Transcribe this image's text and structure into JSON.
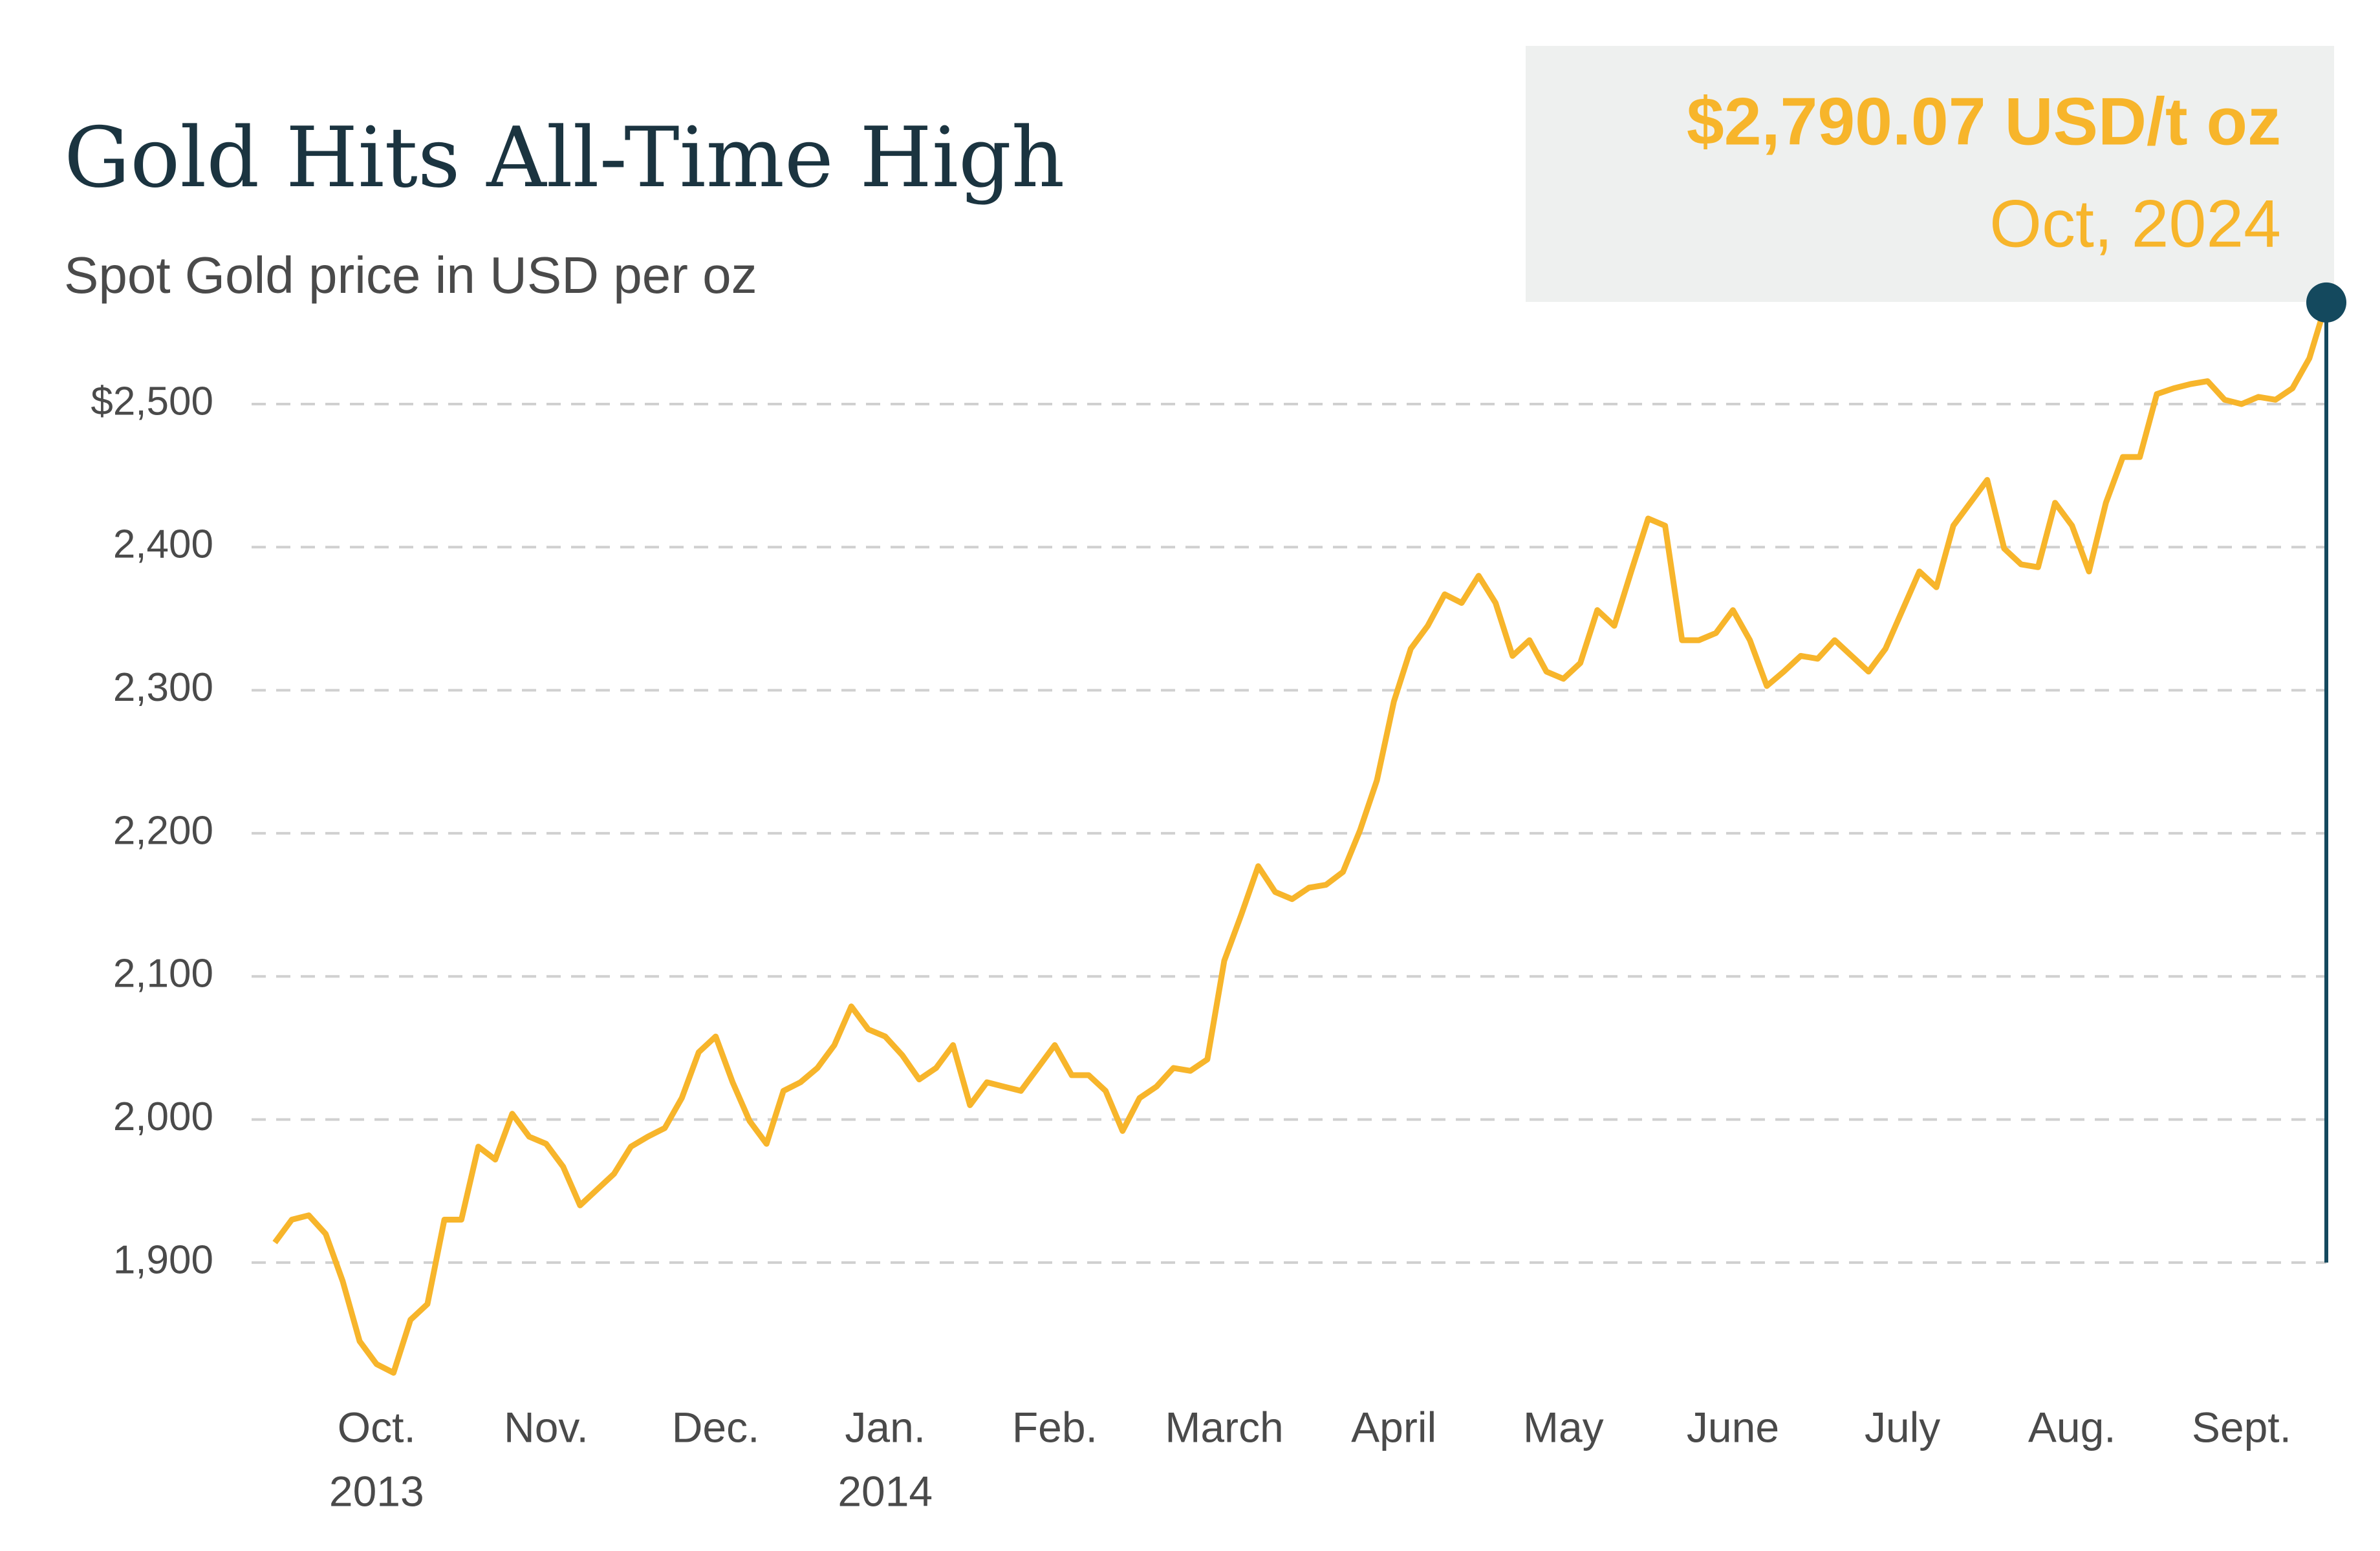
{
  "chart_data": {
    "type": "line",
    "title": "Gold Hits All-Time High",
    "subtitle": "Spot Gold price in USD per oz",
    "headline": "$2,790.07 USD/t oz",
    "headline_date": "Oct, 2024",
    "color": "#f7b52b",
    "marker_color": "#14495e",
    "grid": true,
    "ylim": [
      1815,
      2575
    ],
    "yticks": [
      {
        "value": 1900,
        "label": "1,900"
      },
      {
        "value": 2000,
        "label": "2,000"
      },
      {
        "value": 2100,
        "label": "2,100"
      },
      {
        "value": 2200,
        "label": "2,200"
      },
      {
        "value": 2300,
        "label": "2,300"
      },
      {
        "value": 2400,
        "label": "2,400"
      },
      {
        "value": 2500,
        "label": "$2,500"
      }
    ],
    "categories": [
      null,
      null,
      null,
      null,
      null,
      null,
      "Oct.",
      null,
      null,
      null,
      null,
      null,
      null,
      null,
      null,
      null,
      "Nov.",
      null,
      null,
      null,
      null,
      null,
      null,
      null,
      null,
      null,
      "Dec.",
      null,
      null,
      null,
      null,
      null,
      null,
      null,
      null,
      null,
      "Jan.",
      null,
      null,
      null,
      null,
      null,
      null,
      null,
      null,
      null,
      "Feb.",
      null,
      null,
      null,
      null,
      null,
      null,
      null,
      null,
      null,
      "March",
      null,
      null,
      null,
      null,
      null,
      null,
      null,
      null,
      null,
      "April",
      null,
      null,
      null,
      null,
      null,
      null,
      null,
      null,
      null,
      "May",
      null,
      null,
      null,
      null,
      null,
      null,
      null,
      null,
      null,
      "June",
      null,
      null,
      null,
      null,
      null,
      null,
      null,
      null,
      null,
      "July",
      null,
      null,
      null,
      null,
      null,
      null,
      null,
      null,
      null,
      "Aug.",
      null,
      null,
      null,
      null,
      null,
      null,
      null,
      null,
      null,
      "Sept.",
      null,
      null,
      null,
      null,
      null
    ],
    "years": [
      null,
      null,
      null,
      null,
      null,
      null,
      "2013",
      null,
      null,
      null,
      null,
      null,
      null,
      null,
      null,
      null,
      null,
      null,
      null,
      null,
      null,
      null,
      null,
      null,
      null,
      null,
      null,
      null,
      null,
      null,
      null,
      null,
      null,
      null,
      null,
      null,
      "2014",
      null,
      null,
      null,
      null,
      null,
      null,
      null,
      null,
      null,
      null,
      null,
      null,
      null,
      null,
      null,
      null,
      null,
      null,
      null,
      null,
      null,
      null,
      null,
      null,
      null,
      null,
      null,
      null,
      null,
      null,
      null,
      null,
      null,
      null,
      null,
      null,
      null,
      null,
      null,
      null,
      null,
      null,
      null,
      null,
      null,
      null,
      null,
      null,
      null,
      null,
      null,
      null,
      null,
      null,
      null,
      null,
      null,
      null,
      null,
      null,
      null,
      null,
      null,
      null,
      null,
      null,
      null,
      null,
      null,
      null,
      null,
      null,
      null,
      null,
      null,
      null,
      null,
      null,
      null,
      null,
      null,
      null,
      null,
      null,
      null,
      null,
      null
    ],
    "values": [
      1914,
      1930,
      1933,
      1920,
      1887,
      1845,
      1829,
      1823,
      1860,
      1871,
      1930,
      1930,
      1981,
      1972,
      2004,
      1988,
      1983,
      1967,
      1940,
      1951,
      1962,
      1981,
      1988,
      1994,
      2015,
      2047,
      2058,
      2026,
      1999,
      1983,
      2020,
      2026,
      2036,
      2052,
      2079,
      2063,
      2058,
      2045,
      2028,
      2036,
      2052,
      2010,
      2026,
      2023,
      2020,
      2036,
      2052,
      2031,
      2031,
      2020,
      1992,
      2015,
      2023,
      2036,
      2034,
      2042,
      2111,
      2143,
      2177,
      2159,
      2154,
      2162,
      2164,
      2173,
      2202,
      2237,
      2292,
      2329,
      2345,
      2367,
      2361,
      2380,
      2361,
      2324,
      2335,
      2313,
      2308,
      2319,
      2356,
      2345,
      2383,
      2420,
      2415,
      2335,
      2335,
      2340,
      2356,
      2335,
      2303,
      2313,
      2324,
      2322,
      2335,
      2324,
      2313,
      2329,
      2356,
      2383,
      2372,
      2415,
      2431,
      2447,
      2399,
      2388,
      2386,
      2431,
      2415,
      2383,
      2431,
      2463,
      2463,
      2507,
      2511,
      2514,
      2516,
      2503,
      2500,
      2505,
      2503,
      2511,
      2532,
      2571
    ]
  }
}
